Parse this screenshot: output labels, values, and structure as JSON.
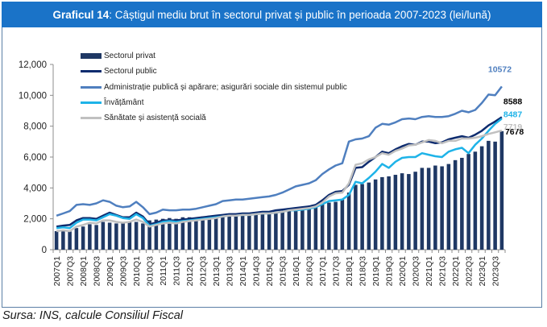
{
  "header": {
    "label": "Graficul 14",
    "title": ": Câștigul mediu brut în sectorul privat și public în perioada 2007-2023 (lei/lună)"
  },
  "source": "Sursa: INS, calcule Consiliul Fiscal",
  "chart_data": {
    "type": "bar+line",
    "title": "Graficul 14: Câștigul mediu brut în sectorul privat și public în perioada 2007-2023 (lei/lună)",
    "xlabel": "",
    "ylabel": "",
    "ylim": [
      0,
      12000
    ],
    "yticks": [
      0,
      2000,
      4000,
      6000,
      8000,
      10000,
      12000
    ],
    "ytick_labels": [
      "0",
      "2,000",
      "4,000",
      "6,000",
      "8,000",
      "10,000",
      "12,000"
    ],
    "grid": false,
    "legend_position": "top-left",
    "categories": [
      "2007Q1",
      "2007Q2",
      "2007Q3",
      "2007Q4",
      "2008Q1",
      "2008Q2",
      "2008Q3",
      "2008Q4",
      "2009Q1",
      "2009Q2",
      "2009Q3",
      "2009Q4",
      "2010Q1",
      "2010Q2",
      "2010Q3",
      "2010Q4",
      "2011Q1",
      "2011Q2",
      "2011Q3",
      "2011Q4",
      "2012Q1",
      "2012Q2",
      "2012Q3",
      "2012Q4",
      "2013Q1",
      "2013Q2",
      "2013Q3",
      "2013Q4",
      "2014Q1",
      "2014Q2",
      "2014Q3",
      "2014Q4",
      "2015Q1",
      "2015Q2",
      "2015Q3",
      "2015Q4",
      "2016Q1",
      "2016Q2",
      "2016Q3",
      "2016Q4",
      "2017Q1",
      "2017Q2",
      "2017Q3",
      "2017Q4",
      "2018Q1",
      "2018Q2",
      "2018Q3",
      "2018Q4",
      "2019Q1",
      "2019Q2",
      "2019Q3",
      "2019Q4",
      "2020Q1",
      "2020Q2",
      "2020Q3",
      "2020Q4",
      "2021Q1",
      "2021Q2",
      "2021Q3",
      "2021Q4",
      "2022Q1",
      "2022Q2",
      "2022Q3",
      "2022Q4",
      "2023Q1",
      "2023Q2",
      "2023Q3",
      "2023Q4"
    ],
    "xtick_labels": [
      "2007Q1",
      "2007Q3",
      "2008Q1",
      "2008Q3",
      "2009Q1",
      "2009Q3",
      "2010Q1",
      "2010Q3",
      "2011Q1",
      "2011Q3",
      "2012Q1",
      "2012Q3",
      "2013Q1",
      "2013Q3",
      "2014Q1",
      "2014Q3",
      "2015Q1",
      "2015Q3",
      "2016Q1",
      "2016Q3",
      "2017Q1",
      "2017Q3",
      "2018Q1",
      "2018Q3",
      "2019Q1",
      "2019Q3",
      "2020Q1",
      "2020Q3",
      "2021Q1",
      "2021Q3",
      "2022Q1",
      "2022Q3",
      "2023Q1",
      "2023Q3"
    ],
    "series": [
      {
        "name": "Sectorul privat",
        "kind": "bar",
        "color": "#1f3864",
        "values": [
          1200,
          1250,
          1180,
          1400,
          1500,
          1650,
          1600,
          1800,
          1750,
          1700,
          1750,
          1850,
          1800,
          1700,
          1900,
          1950,
          2000,
          2050,
          2000,
          2100,
          2100,
          2050,
          2150,
          2200,
          2200,
          2250,
          2200,
          2300,
          2300,
          2300,
          2350,
          2400,
          2400,
          2450,
          2450,
          2550,
          2600,
          2650,
          2700,
          2800,
          2950,
          3050,
          3100,
          3250,
          3700,
          4200,
          4250,
          4350,
          4550,
          4700,
          4750,
          4850,
          4950,
          4900,
          5050,
          5300,
          5300,
          5450,
          5400,
          5550,
          5800,
          5950,
          6200,
          6350,
          6700,
          7050,
          7000,
          7678
        ],
        "end_label": "7678"
      },
      {
        "name": "Sectorul public",
        "kind": "line",
        "color": "#0d2b6e",
        "values": [
          1500,
          1560,
          1600,
          1900,
          2050,
          2050,
          2000,
          2200,
          2400,
          2250,
          2100,
          2100,
          2400,
          2150,
          1650,
          1750,
          1900,
          1900,
          1900,
          1950,
          2000,
          2050,
          2100,
          2150,
          2200,
          2250,
          2300,
          2300,
          2350,
          2350,
          2400,
          2450,
          2450,
          2550,
          2600,
          2650,
          2700,
          2750,
          2800,
          2900,
          3200,
          3550,
          3750,
          3800,
          4200,
          5300,
          5350,
          5700,
          6000,
          6350,
          6250,
          6500,
          6700,
          6850,
          6800,
          7000,
          7000,
          6900,
          6950,
          7150,
          7250,
          7350,
          7250,
          7450,
          7700,
          8050,
          8300,
          8588
        ],
        "end_label": "8588"
      },
      {
        "name": "Administrație publică și apărare; asigurări sociale din sistemul public",
        "kind": "line",
        "color": "#4f7fbf",
        "values": [
          2200,
          2350,
          2500,
          2900,
          2950,
          2900,
          3000,
          3200,
          3100,
          2850,
          2750,
          2800,
          3100,
          2750,
          2300,
          2400,
          2600,
          2550,
          2550,
          2600,
          2600,
          2650,
          2750,
          2850,
          2950,
          3150,
          3200,
          3250,
          3250,
          3300,
          3350,
          3400,
          3450,
          3550,
          3700,
          3900,
          4100,
          4200,
          4300,
          4500,
          4900,
          5200,
          5450,
          5600,
          7000,
          7150,
          7200,
          7350,
          7900,
          8150,
          8100,
          8250,
          8450,
          8500,
          8450,
          8600,
          8650,
          8600,
          8600,
          8650,
          8800,
          9000,
          8900,
          9050,
          9500,
          10050,
          10000,
          10572
        ],
        "end_label": "10572"
      },
      {
        "name": "Învățământ",
        "kind": "line",
        "color": "#1eb3e8",
        "values": [
          1400,
          1450,
          1400,
          1750,
          1950,
          1950,
          1900,
          2100,
          2300,
          2200,
          2050,
          2000,
          2300,
          2050,
          1550,
          1650,
          1800,
          1850,
          1800,
          1850,
          1900,
          1950,
          2000,
          2050,
          2100,
          2150,
          2200,
          2200,
          2250,
          2250,
          2300,
          2350,
          2350,
          2400,
          2450,
          2550,
          2550,
          2600,
          2650,
          2750,
          2950,
          3150,
          3200,
          3250,
          3550,
          4400,
          4300,
          4650,
          5050,
          5550,
          5300,
          5700,
          5950,
          6000,
          6000,
          6250,
          6150,
          6050,
          6000,
          6350,
          6500,
          6600,
          6250,
          6800,
          7200,
          7700,
          8150,
          8487
        ],
        "end_label": "8487"
      },
      {
        "name": "Sănătate și asistență socială",
        "kind": "line",
        "color": "#c0c0c0",
        "values": [
          1200,
          1250,
          1200,
          1500,
          1600,
          1750,
          1700,
          1900,
          1900,
          1800,
          1750,
          1800,
          1950,
          1800,
          1500,
          1600,
          1700,
          1750,
          1700,
          1800,
          1850,
          1900,
          1950,
          2000,
          2050,
          2150,
          2200,
          2200,
          2250,
          2250,
          2300,
          2350,
          2350,
          2400,
          2450,
          2550,
          2600,
          2650,
          2700,
          2800,
          3050,
          3450,
          3650,
          3700,
          4300,
          5500,
          5600,
          5850,
          6000,
          6250,
          6150,
          6400,
          6550,
          6750,
          6800,
          6950,
          7100,
          7050,
          6900,
          7050,
          7050,
          7200,
          7200,
          7250,
          7350,
          7500,
          7600,
          7719
        ],
        "end_label": "7719"
      }
    ]
  }
}
